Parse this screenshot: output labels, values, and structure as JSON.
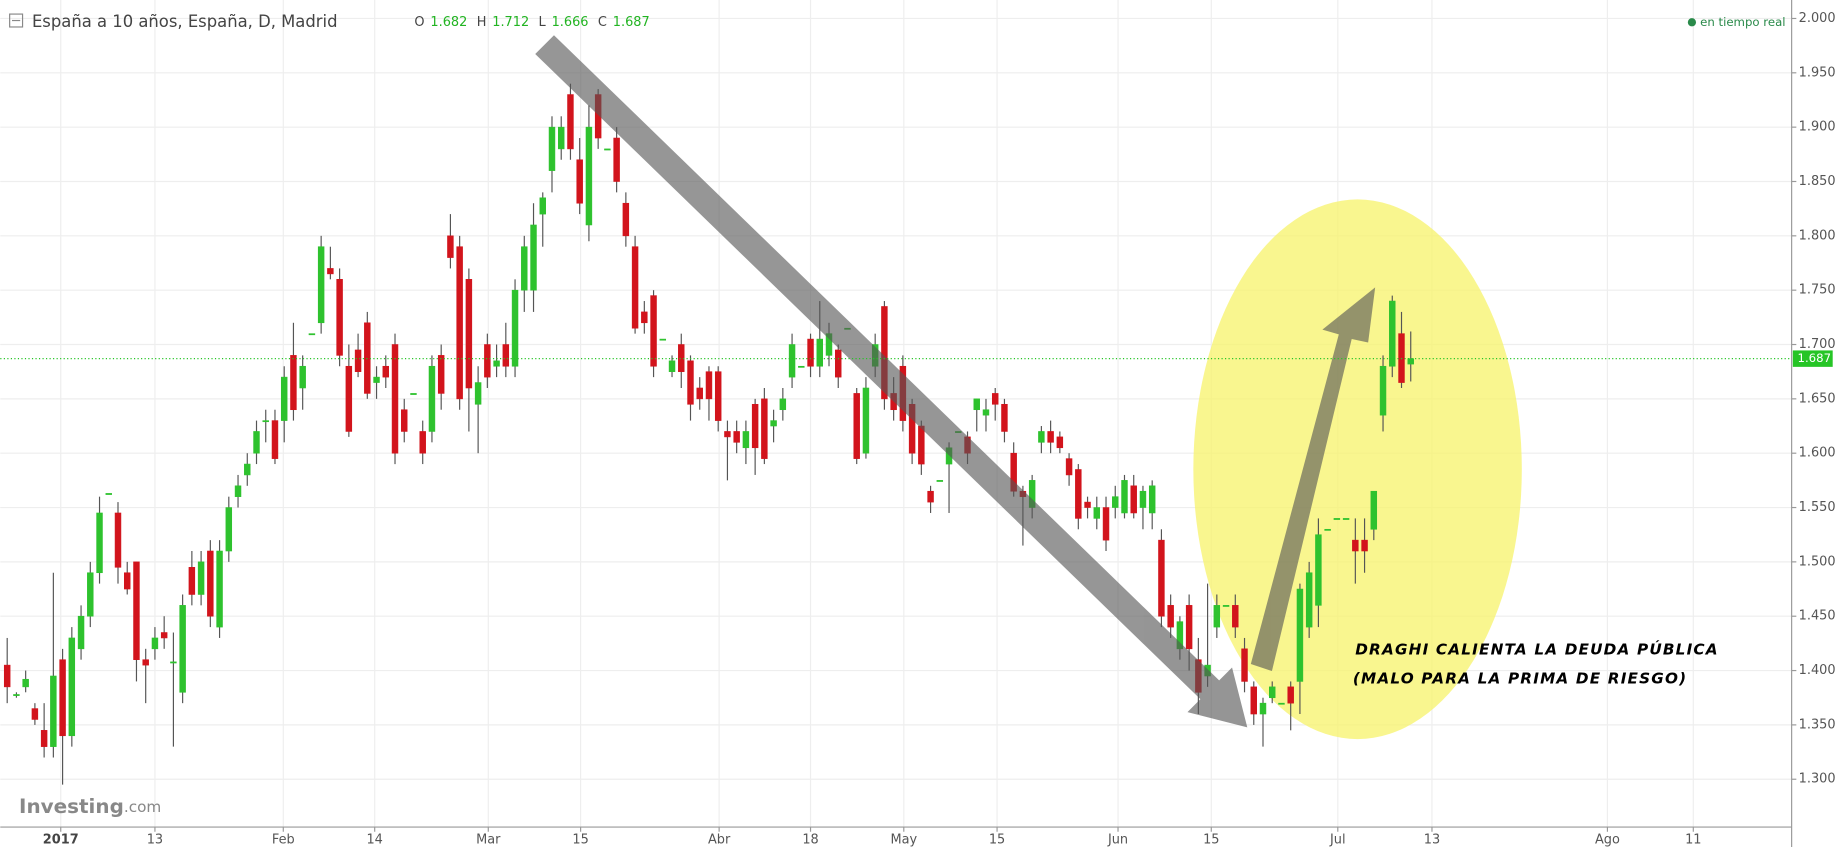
{
  "chart_data": {
    "type": "candlestick",
    "title": "España a 10 años, España, D, Madrid",
    "header_values": [
      {
        "label": "O",
        "value": 1.682
      },
      {
        "label": "H",
        "value": 1.712
      },
      {
        "label": "L",
        "value": 1.666
      },
      {
        "label": "C",
        "value": 1.687
      }
    ],
    "status": "en tiempo real",
    "brand": "Investing",
    "brand_suffix": ".com",
    "last_price": 1.687,
    "annotations": [
      "DRAGHI CALIENTA LA DEUDA PÚBLICA",
      "(MALO PARA LA PRIMA DE RIESGO)"
    ],
    "up_color": "#2ec22e",
    "down_color": "#d2141c",
    "last_color": "#26c526",
    "grid": true,
    "xlim": [
      -0.75,
      193.25
    ],
    "xticks": [
      {
        "value": 5.8,
        "label": "2017"
      },
      {
        "value": 16.0,
        "label": "13"
      },
      {
        "value": 29.9,
        "label": "Feb"
      },
      {
        "value": 39.8,
        "label": "14"
      },
      {
        "value": 52.1,
        "label": "Mar"
      },
      {
        "value": 62.1,
        "label": "15"
      },
      {
        "value": 77.1,
        "label": "Abr"
      },
      {
        "value": 87.0,
        "label": "18"
      },
      {
        "value": 97.1,
        "label": "May"
      },
      {
        "value": 107.2,
        "label": "15"
      },
      {
        "value": 120.3,
        "label": "Jun"
      },
      {
        "value": 130.4,
        "label": "15"
      },
      {
        "value": 144.1,
        "label": "Jul"
      },
      {
        "value": 154.3,
        "label": "13"
      },
      {
        "value": 173.3,
        "label": "Ago"
      },
      {
        "value": 182.6,
        "label": "11"
      }
    ],
    "ylim": [
      1.256,
      2.017
    ],
    "yticks": [
      {
        "value": 1.3,
        "label": "1.300"
      },
      {
        "value": 1.35,
        "label": "1.350"
      },
      {
        "value": 1.4,
        "label": "1.400"
      },
      {
        "value": 1.45,
        "label": "1.450"
      },
      {
        "value": 1.5,
        "label": "1.500"
      },
      {
        "value": 1.55,
        "label": "1.550"
      },
      {
        "value": 1.6,
        "label": "1.600"
      },
      {
        "value": 1.65,
        "label": "1.650"
      },
      {
        "value": 1.7,
        "label": "1.700"
      },
      {
        "value": 1.75,
        "label": "1.750"
      },
      {
        "value": 1.8,
        "label": "1.800"
      },
      {
        "value": 1.85,
        "label": "1.850"
      },
      {
        "value": 1.9,
        "label": "1.900"
      },
      {
        "value": 1.95,
        "label": "1.950"
      },
      {
        "value": 2.0,
        "label": "2.000"
      }
    ],
    "candles": [
      [
        1.405,
        1.43,
        1.37,
        1.385
      ],
      [
        1.378,
        1.38,
        1.375,
        1.378
      ],
      [
        1.385,
        1.4,
        1.38,
        1.392
      ],
      [
        1.365,
        1.37,
        1.35,
        1.355
      ],
      [
        1.345,
        1.37,
        1.32,
        1.33
      ],
      [
        1.33,
        1.49,
        1.32,
        1.395
      ],
      [
        1.41,
        1.42,
        1.295,
        1.34
      ],
      [
        1.34,
        1.44,
        1.33,
        1.43
      ],
      [
        1.42,
        1.46,
        1.41,
        1.45
      ],
      [
        1.45,
        1.5,
        1.44,
        1.49
      ],
      [
        1.49,
        1.56,
        1.48,
        1.545
      ],
      [
        1.563,
        1.563,
        1.563,
        1.563
      ],
      [
        1.545,
        1.555,
        1.48,
        1.495
      ],
      [
        1.49,
        1.5,
        1.47,
        1.475
      ],
      [
        1.5,
        1.5,
        1.39,
        1.41
      ],
      [
        1.41,
        1.42,
        1.37,
        1.405
      ],
      [
        1.42,
        1.44,
        1.41,
        1.43
      ],
      [
        1.435,
        1.45,
        1.42,
        1.43
      ],
      [
        1.408,
        1.435,
        1.33,
        1.408
      ],
      [
        1.38,
        1.47,
        1.37,
        1.46
      ],
      [
        1.495,
        1.51,
        1.46,
        1.47
      ],
      [
        1.47,
        1.51,
        1.46,
        1.5
      ],
      [
        1.51,
        1.52,
        1.44,
        1.45
      ],
      [
        1.44,
        1.52,
        1.43,
        1.51
      ],
      [
        1.51,
        1.56,
        1.5,
        1.55
      ],
      [
        1.56,
        1.58,
        1.55,
        1.57
      ],
      [
        1.58,
        1.6,
        1.57,
        1.59
      ],
      [
        1.6,
        1.63,
        1.59,
        1.62
      ],
      [
        1.63,
        1.64,
        1.61,
        1.63
      ],
      [
        1.63,
        1.64,
        1.59,
        1.595
      ],
      [
        1.63,
        1.68,
        1.61,
        1.67
      ],
      [
        1.69,
        1.72,
        1.63,
        1.64
      ],
      [
        1.66,
        1.69,
        1.64,
        1.68
      ],
      [
        1.71,
        1.71,
        1.71,
        1.71
      ],
      [
        1.72,
        1.8,
        1.71,
        1.79
      ],
      [
        1.77,
        1.79,
        1.76,
        1.765
      ],
      [
        1.76,
        1.77,
        1.68,
        1.69
      ],
      [
        1.68,
        1.7,
        1.615,
        1.62
      ],
      [
        1.695,
        1.71,
        1.67,
        1.675
      ],
      [
        1.72,
        1.73,
        1.65,
        1.655
      ],
      [
        1.665,
        1.68,
        1.65,
        1.67
      ],
      [
        1.68,
        1.69,
        1.66,
        1.67
      ],
      [
        1.7,
        1.71,
        1.59,
        1.6
      ],
      [
        1.64,
        1.65,
        1.61,
        1.62
      ],
      [
        1.655,
        1.655,
        1.655,
        1.655
      ],
      [
        1.62,
        1.63,
        1.59,
        1.6
      ],
      [
        1.62,
        1.69,
        1.61,
        1.68
      ],
      [
        1.69,
        1.7,
        1.64,
        1.655
      ],
      [
        1.8,
        1.82,
        1.77,
        1.78
      ],
      [
        1.79,
        1.8,
        1.64,
        1.65
      ],
      [
        1.76,
        1.77,
        1.62,
        1.66
      ],
      [
        1.645,
        1.68,
        1.6,
        1.665
      ],
      [
        1.7,
        1.71,
        1.66,
        1.67
      ],
      [
        1.68,
        1.7,
        1.67,
        1.685
      ],
      [
        1.7,
        1.72,
        1.67,
        1.68
      ],
      [
        1.68,
        1.76,
        1.67,
        1.75
      ],
      [
        1.75,
        1.8,
        1.73,
        1.79
      ],
      [
        1.75,
        1.83,
        1.73,
        1.81
      ],
      [
        1.82,
        1.84,
        1.79,
        1.835
      ],
      [
        1.86,
        1.91,
        1.84,
        1.9
      ],
      [
        1.88,
        1.91,
        1.87,
        1.9
      ],
      [
        1.93,
        1.94,
        1.87,
        1.88
      ],
      [
        1.87,
        1.89,
        1.82,
        1.83
      ],
      [
        1.81,
        1.92,
        1.795,
        1.9
      ],
      [
        1.93,
        1.935,
        1.88,
        1.89
      ],
      [
        1.88,
        1.88,
        1.88,
        1.88
      ],
      [
        1.89,
        1.9,
        1.84,
        1.85
      ],
      [
        1.83,
        1.84,
        1.79,
        1.8
      ],
      [
        1.79,
        1.8,
        1.71,
        1.715
      ],
      [
        1.73,
        1.74,
        1.71,
        1.72
      ],
      [
        1.745,
        1.75,
        1.67,
        1.68
      ],
      [
        1.705,
        1.705,
        1.705,
        1.705
      ],
      [
        1.675,
        1.69,
        1.67,
        1.685
      ],
      [
        1.7,
        1.71,
        1.66,
        1.675
      ],
      [
        1.685,
        1.69,
        1.63,
        1.645
      ],
      [
        1.66,
        1.67,
        1.64,
        1.65
      ],
      [
        1.675,
        1.68,
        1.63,
        1.65
      ],
      [
        1.675,
        1.68,
        1.62,
        1.63
      ],
      [
        1.62,
        1.63,
        1.575,
        1.615
      ],
      [
        1.62,
        1.63,
        1.6,
        1.61
      ],
      [
        1.605,
        1.63,
        1.59,
        1.62
      ],
      [
        1.645,
        1.65,
        1.58,
        1.605
      ],
      [
        1.65,
        1.66,
        1.59,
        1.595
      ],
      [
        1.625,
        1.64,
        1.61,
        1.63
      ],
      [
        1.64,
        1.66,
        1.63,
        1.65
      ],
      [
        1.67,
        1.71,
        1.66,
        1.7
      ],
      [
        1.68,
        1.68,
        1.68,
        1.68
      ],
      [
        1.705,
        1.71,
        1.67,
        1.68
      ],
      [
        1.68,
        1.74,
        1.67,
        1.705
      ],
      [
        1.69,
        1.72,
        1.68,
        1.71
      ],
      [
        1.695,
        1.7,
        1.66,
        1.67
      ],
      [
        1.715,
        1.715,
        1.715,
        1.715
      ],
      [
        1.655,
        1.66,
        1.59,
        1.595
      ],
      [
        1.6,
        1.67,
        1.595,
        1.66
      ],
      [
        1.68,
        1.71,
        1.67,
        1.7
      ],
      [
        1.735,
        1.74,
        1.64,
        1.65
      ],
      [
        1.655,
        1.67,
        1.63,
        1.64
      ],
      [
        1.68,
        1.69,
        1.62,
        1.63
      ],
      [
        1.645,
        1.65,
        1.59,
        1.6
      ],
      [
        1.625,
        1.63,
        1.58,
        1.59
      ],
      [
        1.565,
        1.57,
        1.545,
        1.555
      ],
      [
        1.575,
        1.575,
        1.575,
        1.575
      ],
      [
        1.59,
        1.61,
        1.545,
        1.605
      ],
      [
        1.62,
        1.62,
        1.62,
        1.62
      ],
      [
        1.615,
        1.62,
        1.59,
        1.6
      ],
      [
        1.64,
        1.65,
        1.62,
        1.65
      ],
      [
        1.635,
        1.65,
        1.62,
        1.64
      ],
      [
        1.655,
        1.66,
        1.63,
        1.645
      ],
      [
        1.645,
        1.65,
        1.61,
        1.62
      ],
      [
        1.6,
        1.61,
        1.56,
        1.565
      ],
      [
        1.565,
        1.57,
        1.515,
        1.56
      ],
      [
        1.55,
        1.58,
        1.54,
        1.575
      ],
      [
        1.61,
        1.625,
        1.6,
        1.62
      ],
      [
        1.62,
        1.63,
        1.6,
        1.61
      ],
      [
        1.615,
        1.62,
        1.6,
        1.605
      ],
      [
        1.595,
        1.6,
        1.57,
        1.58
      ],
      [
        1.585,
        1.59,
        1.53,
        1.54
      ],
      [
        1.555,
        1.56,
        1.54,
        1.55
      ],
      [
        1.54,
        1.56,
        1.53,
        1.55
      ],
      [
        1.55,
        1.56,
        1.51,
        1.52
      ],
      [
        1.55,
        1.57,
        1.54,
        1.56
      ],
      [
        1.545,
        1.58,
        1.54,
        1.575
      ],
      [
        1.57,
        1.58,
        1.54,
        1.545
      ],
      [
        1.55,
        1.57,
        1.53,
        1.565
      ],
      [
        1.545,
        1.575,
        1.53,
        1.57
      ],
      [
        1.52,
        1.53,
        1.44,
        1.45
      ],
      [
        1.46,
        1.47,
        1.43,
        1.44
      ],
      [
        1.42,
        1.45,
        1.41,
        1.445
      ],
      [
        1.46,
        1.47,
        1.4,
        1.42
      ],
      [
        1.41,
        1.43,
        1.36,
        1.38
      ],
      [
        1.395,
        1.48,
        1.385,
        1.405
      ],
      [
        1.44,
        1.47,
        1.43,
        1.46
      ],
      [
        1.46,
        1.46,
        1.46,
        1.46
      ],
      [
        1.46,
        1.47,
        1.43,
        1.44
      ],
      [
        1.42,
        1.43,
        1.38,
        1.39
      ],
      [
        1.385,
        1.39,
        1.35,
        1.36
      ],
      [
        1.36,
        1.375,
        1.33,
        1.37
      ],
      [
        1.375,
        1.39,
        1.37,
        1.385
      ],
      [
        1.37,
        1.37,
        1.37,
        1.37
      ],
      [
        1.385,
        1.39,
        1.345,
        1.37
      ],
      [
        1.39,
        1.48,
        1.36,
        1.475
      ],
      [
        1.44,
        1.5,
        1.43,
        1.49
      ],
      [
        1.46,
        1.54,
        1.44,
        1.525
      ],
      [
        1.53,
        1.53,
        1.53,
        1.53
      ],
      [
        1.54,
        1.54,
        1.54,
        1.54
      ],
      [
        1.54,
        1.54,
        1.54,
        1.54
      ],
      [
        1.52,
        1.54,
        1.48,
        1.51
      ],
      [
        1.52,
        1.54,
        1.49,
        1.51
      ],
      [
        1.53,
        1.565,
        1.52,
        1.565
      ],
      [
        1.635,
        1.69,
        1.62,
        1.68
      ],
      [
        1.68,
        1.745,
        1.67,
        1.74
      ],
      [
        1.71,
        1.73,
        1.66,
        1.665
      ],
      [
        1.682,
        1.712,
        1.666,
        1.687
      ]
    ]
  }
}
